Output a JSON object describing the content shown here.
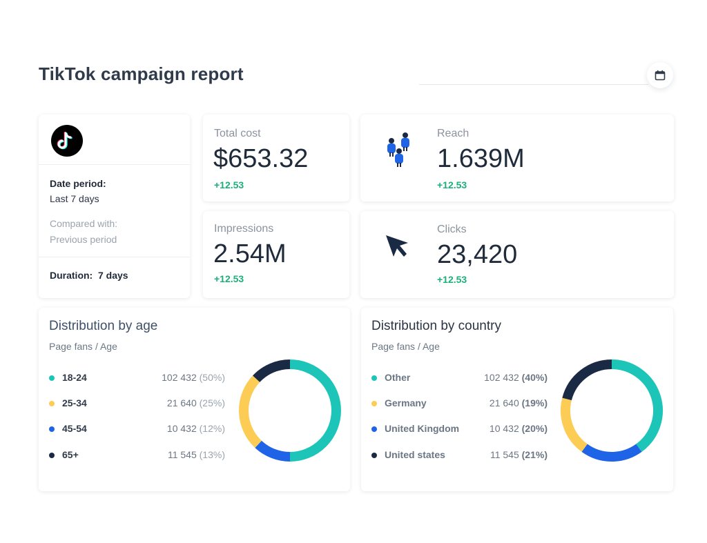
{
  "header": {
    "title": "TikTok campaign report"
  },
  "info": {
    "logo": "tiktok-logo",
    "date_period_label": "Date period:",
    "date_period_value": "Last 7 days",
    "compared_label": "Compared with:",
    "compared_value": "Previous period",
    "duration_label": "Duration:",
    "duration_value": "7 days"
  },
  "stats": {
    "total_cost": {
      "title": "Total cost",
      "value": "$653.32",
      "change": "+12.53"
    },
    "reach": {
      "title": "Reach",
      "value": "1.639M",
      "change": "+12.53",
      "icon": "people-icon"
    },
    "impressions": {
      "title": "Impressions",
      "value": "2.54M",
      "change": "+12.53"
    },
    "clicks": {
      "title": "Clicks",
      "value": "23,420",
      "change": "+12.53",
      "icon": "cursor-icon"
    }
  },
  "age": {
    "title": "Distribution by age",
    "subtitle": "Page fans / Age",
    "rows": [
      {
        "name": "18-24",
        "value": "102 432",
        "pct": "(50%)",
        "color": "#1cc5b7"
      },
      {
        "name": "25-34",
        "value": "21 640",
        "pct": "(25%)",
        "color": "#fccc55"
      },
      {
        "name": "45-54",
        "value": "10 432",
        "pct": "(12%)",
        "color": "#1f63e6"
      },
      {
        "name": "65+",
        "value": "11 545",
        "pct": "(13%)",
        "color": "#1b2a44"
      }
    ]
  },
  "country": {
    "title": "Distribution by country",
    "subtitle": "Page fans / Age",
    "rows": [
      {
        "name": "Other",
        "value": "102 432",
        "pct": "(40%)",
        "color": "#1cc5b7"
      },
      {
        "name": "Germany",
        "value": "21 640",
        "pct": "(19%)",
        "color": "#fccc55"
      },
      {
        "name": "United Kingdom",
        "value": "10 432",
        "pct": "(20%)",
        "color": "#1f63e6"
      },
      {
        "name": "United states",
        "value": "11 545",
        "pct": "(21%)",
        "color": "#1b2a44"
      }
    ]
  },
  "chart_data": [
    {
      "type": "pie",
      "title": "Distribution by age",
      "categories": [
        "18-24",
        "25-34",
        "45-54",
        "65+"
      ],
      "values": [
        50,
        25,
        12,
        13
      ],
      "order": [
        "18-24",
        "45-54",
        "25-34",
        "65+"
      ],
      "colors": [
        "#1cc5b7",
        "#1f63e6",
        "#fccc55",
        "#1b2a44"
      ]
    },
    {
      "type": "pie",
      "title": "Distribution by country",
      "categories": [
        "Other",
        "Germany",
        "United Kingdom",
        "United states"
      ],
      "values": [
        40,
        19,
        20,
        21
      ],
      "order": [
        "Other",
        "United Kingdom",
        "Germany",
        "United states"
      ],
      "colors": [
        "#1cc5b7",
        "#1f63e6",
        "#fccc55",
        "#1b2a44"
      ]
    }
  ]
}
